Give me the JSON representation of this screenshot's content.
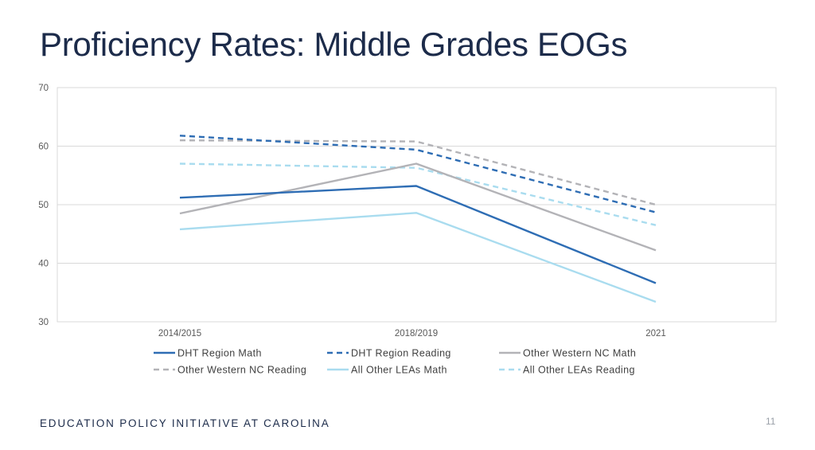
{
  "slide": {
    "title": "Proficiency Rates: Middle Grades EOGs",
    "footer": "EDUCATION POLICY INITIATIVE AT CAROLINA",
    "page_number": "11"
  },
  "chart_data": {
    "type": "line",
    "title": "",
    "xlabel": "",
    "ylabel": "",
    "categories": [
      "2014/2015",
      "2018/2019",
      "2021"
    ],
    "ylim": [
      30,
      70
    ],
    "yticks": [
      30,
      40,
      50,
      60,
      70
    ],
    "grid": true,
    "legend": "bottom",
    "series": [
      {
        "name": "DHT Region Math",
        "values": [
          51.2,
          53.2,
          36.6
        ],
        "color": "#2e6db4",
        "dashed": false
      },
      {
        "name": "DHT Region Reading",
        "values": [
          61.8,
          59.4,
          48.7
        ],
        "color": "#2e6db4",
        "dashed": true
      },
      {
        "name": "Other Western NC Math",
        "values": [
          48.5,
          57.0,
          42.2
        ],
        "color": "#b3b3b7",
        "dashed": false
      },
      {
        "name": "Other Western NC Reading",
        "values": [
          61.0,
          60.8,
          50.0
        ],
        "color": "#b3b3b7",
        "dashed": true
      },
      {
        "name": "All Other LEAs Math",
        "values": [
          45.8,
          48.6,
          33.4
        ],
        "color": "#a9dcef",
        "dashed": false
      },
      {
        "name": "All Other LEAs Reading",
        "values": [
          57.0,
          56.3,
          46.5
        ],
        "color": "#a9dcef",
        "dashed": true
      }
    ]
  }
}
